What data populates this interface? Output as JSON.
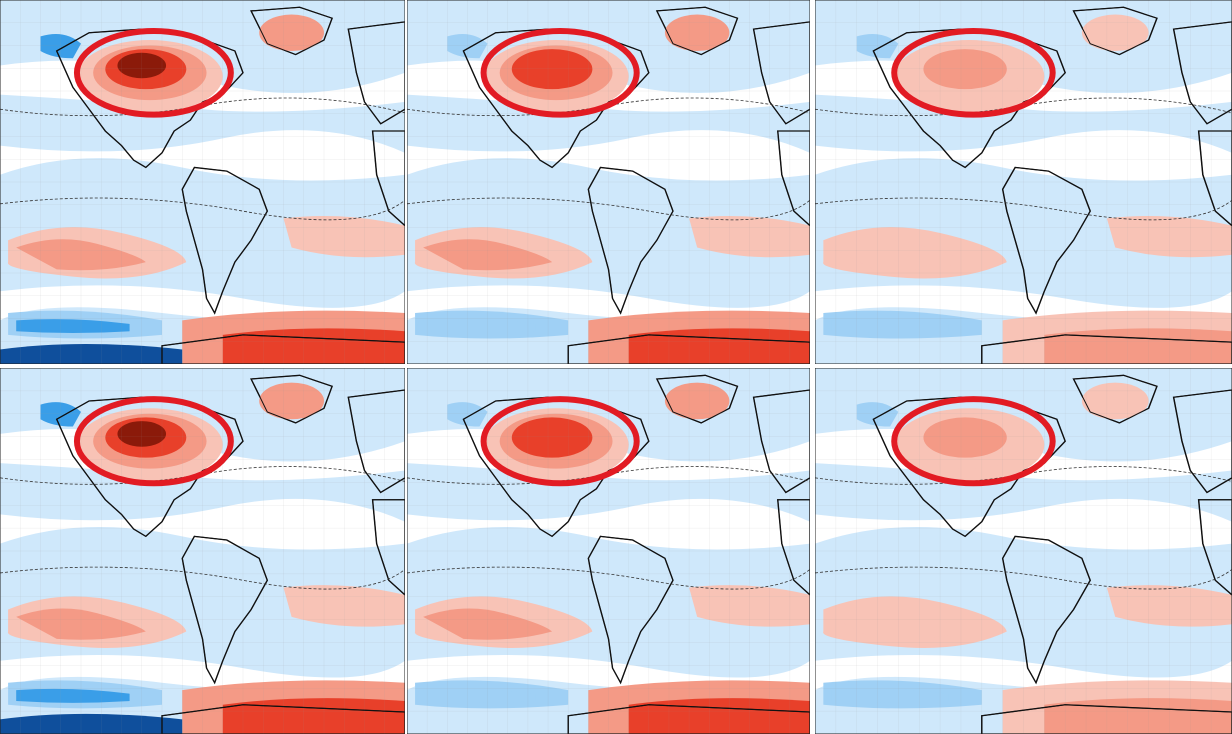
{
  "figure": {
    "rows": 2,
    "cols": 3,
    "colors": {
      "warm_strong": "#8b1a0a",
      "warm_mid": "#e8402a",
      "warm_light": "#f49a86",
      "warm_pale": "#f8c3b6",
      "cool_pale": "#cfe8fb",
      "cool_light": "#9fd0f5",
      "cool_mid": "#3a9ee8",
      "cool_strong": "#0f4f9c",
      "highlight_ring": "#e21b23",
      "coast": "#111111",
      "grid": "#9a9a9a"
    },
    "panels": [
      {
        "id": "top-left",
        "highlight": "north-america",
        "intensity": "strong"
      },
      {
        "id": "top-middle",
        "highlight": "north-america",
        "intensity": "moderate"
      },
      {
        "id": "top-right",
        "highlight": "north-america",
        "intensity": "weak"
      },
      {
        "id": "bottom-left",
        "highlight": "north-america",
        "intensity": "strong"
      },
      {
        "id": "bottom-middle",
        "highlight": "north-america",
        "intensity": "moderate"
      },
      {
        "id": "bottom-right",
        "highlight": "north-america",
        "intensity": "weak"
      }
    ]
  }
}
